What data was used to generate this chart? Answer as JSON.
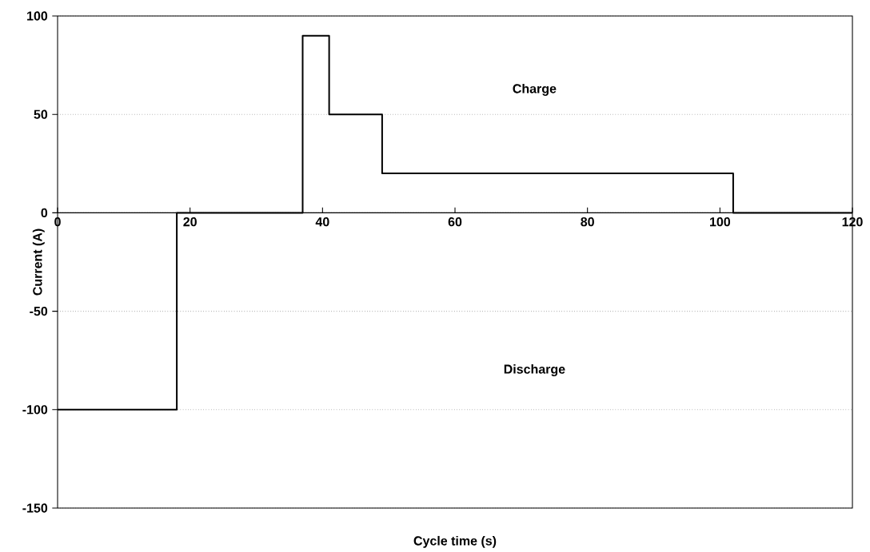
{
  "chart_data": {
    "type": "step",
    "xlabel": "Cycle time (s)",
    "ylabel": "Current (A)",
    "x": [
      0,
      18,
      37,
      41,
      49,
      102,
      120
    ],
    "series": [
      {
        "color": "#000000",
        "values": [
          -100,
          0,
          90,
          50,
          20,
          0,
          0
        ]
      }
    ],
    "xlim": [
      0,
      120
    ],
    "xticks": [
      0,
      20,
      40,
      60,
      80,
      100,
      120
    ],
    "ylim": [
      -150,
      100
    ],
    "yticks": [
      -150,
      -100,
      -50,
      0,
      50,
      100
    ],
    "grid": "y",
    "annotations": [
      "Charge",
      "Discharge"
    ]
  }
}
